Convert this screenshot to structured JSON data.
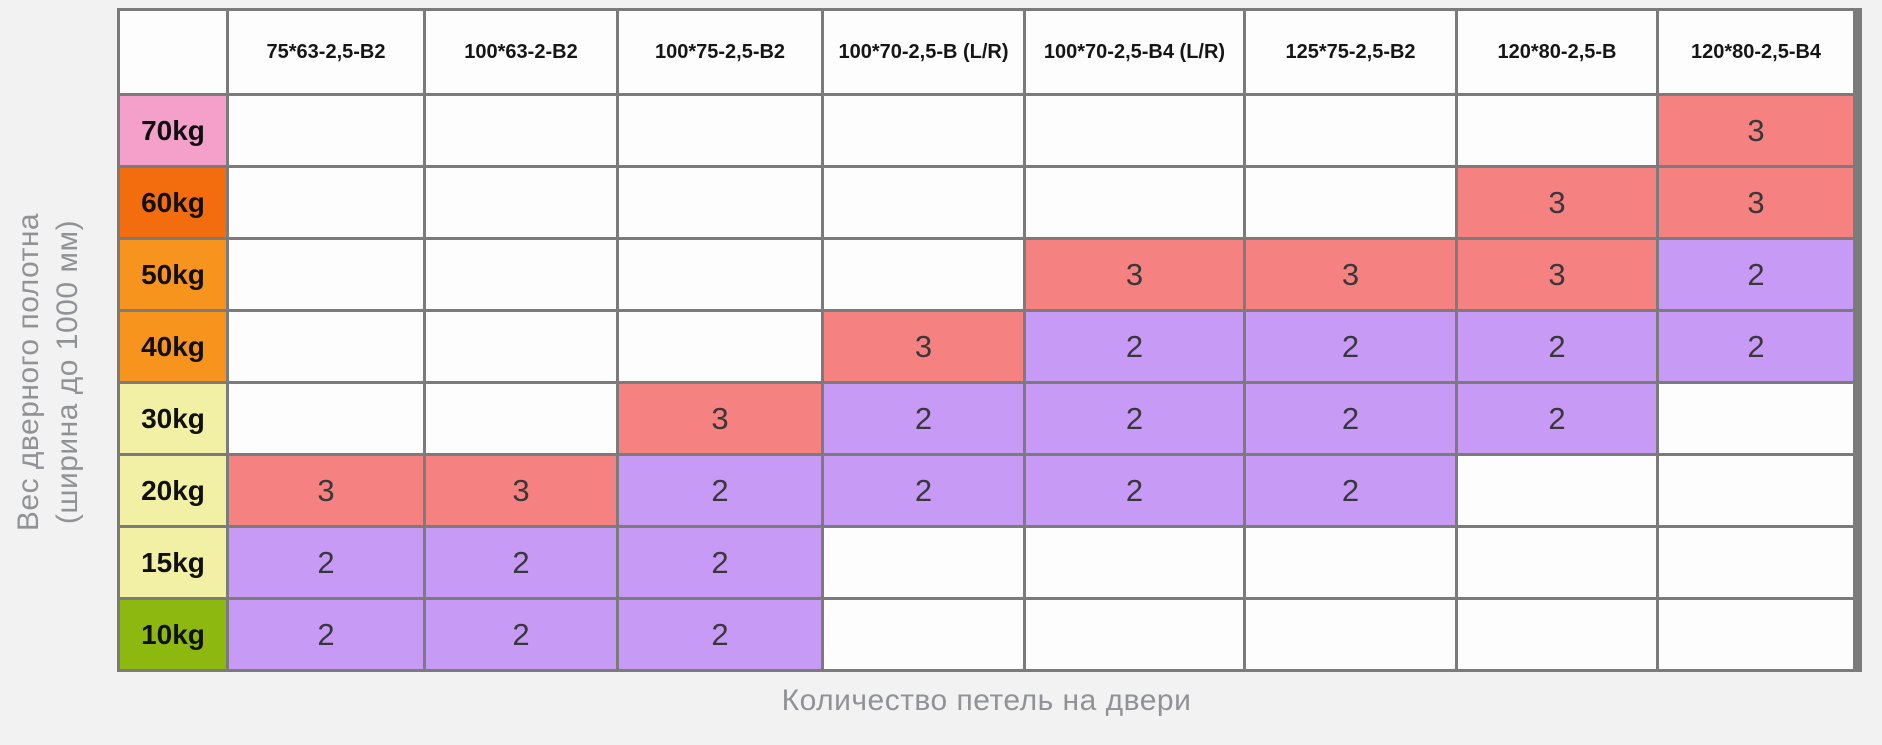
{
  "page": {
    "background": "#f2f2f3",
    "grid_line_color": "#7b7b7b",
    "empty_cell_color": "#fdfdfd",
    "axis_text_color": "#909295"
  },
  "chart_data": {
    "type": "heatmap",
    "title": "",
    "xlabel": "Количество петель на двери",
    "ylabel": "Вес дверного полотна (ширина до 1000 мм)",
    "ylabel_line1": "Вес дверного полотна",
    "ylabel_line2": "(ширина до 1000 мм)",
    "legend_position": "none",
    "grid": true,
    "columns": [
      "75*63-2,5-B2",
      "100*63-2-B2",
      "100*75-2,5-B2",
      "100*70-2,5-B (L/R)",
      "100*70-2,5-B4 (L/R)",
      "125*75-2,5-B2",
      "120*80-2,5-B",
      "120*80-2,5-B4"
    ],
    "value_colors": {
      "3": "#f68181",
      "2": "#c69af5"
    },
    "rows": [
      {
        "label": "70kg",
        "color": "#f5a0ca",
        "values": [
          null,
          null,
          null,
          null,
          null,
          null,
          null,
          3
        ]
      },
      {
        "label": "60kg",
        "color": "#f36c0e",
        "values": [
          null,
          null,
          null,
          null,
          null,
          null,
          3,
          3
        ]
      },
      {
        "label": "50kg",
        "color": "#f7941e",
        "values": [
          null,
          null,
          null,
          null,
          3,
          3,
          3,
          2
        ]
      },
      {
        "label": "40kg",
        "color": "#f7941e",
        "values": [
          null,
          null,
          null,
          3,
          2,
          2,
          2,
          2
        ]
      },
      {
        "label": "30kg",
        "color": "#f2f0a4",
        "values": [
          null,
          null,
          3,
          2,
          2,
          2,
          2,
          null
        ]
      },
      {
        "label": "20kg",
        "color": "#f2f0a4",
        "values": [
          3,
          3,
          2,
          2,
          2,
          2,
          null,
          null
        ]
      },
      {
        "label": "15kg",
        "color": "#f2f0a4",
        "values": [
          2,
          2,
          2,
          null,
          null,
          null,
          null,
          null
        ]
      },
      {
        "label": "10kg",
        "color": "#8db80f",
        "values": [
          2,
          2,
          2,
          null,
          null,
          null,
          null,
          null
        ]
      }
    ]
  }
}
